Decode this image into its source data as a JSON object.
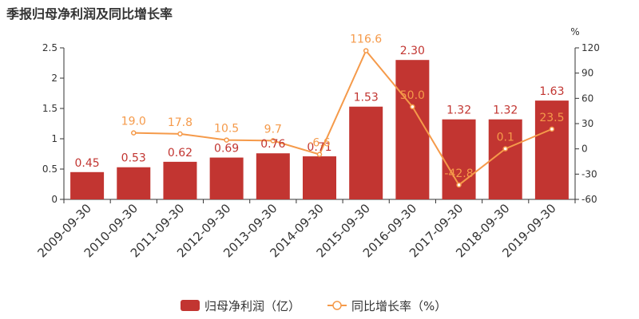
{
  "chart_data": {
    "type": "bar",
    "title": "季报归母净利润及同比增长率",
    "categories": [
      "2009-09-30",
      "2010-09-30",
      "2011-09-30",
      "2012-09-30",
      "2013-09-30",
      "2014-09-30",
      "2015-09-30",
      "2016-09-30",
      "2017-09-30",
      "2018-09-30",
      "2019-09-30"
    ],
    "series": [
      {
        "name": "归母净利润（亿）",
        "type": "bar",
        "axis": "left",
        "color": "#c23531",
        "values": [
          0.45,
          0.53,
          0.62,
          0.69,
          0.76,
          0.71,
          1.53,
          2.3,
          1.32,
          1.32,
          1.63
        ],
        "labels": [
          "0.45",
          "0.53",
          "0.62",
          "0.69",
          "0.76",
          "0.71",
          "1.53",
          "2.30",
          "1.32",
          "1.32",
          "1.63"
        ]
      },
      {
        "name": "同比增长率（%）",
        "type": "line",
        "axis": "right",
        "color": "#f59a4a",
        "values": [
          null,
          19.0,
          17.8,
          10.5,
          9.7,
          -6.6,
          116.6,
          50.0,
          -42.8,
          0.1,
          23.5
        ],
        "labels": [
          "",
          "19.0",
          "17.8",
          "10.5",
          "9.7",
          "-6.6",
          "116.6",
          "50.0",
          "-42.8",
          "0.1",
          "23.5"
        ]
      }
    ],
    "y_left": {
      "ylim": [
        0,
        2.5
      ],
      "ticks": [
        "0",
        "0.5",
        "1",
        "1.5",
        "2",
        "2.5"
      ]
    },
    "y_right": {
      "ylim": [
        -60,
        120
      ],
      "ticks": [
        "-60",
        "-30",
        "0",
        "30",
        "60",
        "90",
        "120"
      ],
      "unit": "%"
    },
    "grid": false,
    "legend": "bottom-center"
  }
}
